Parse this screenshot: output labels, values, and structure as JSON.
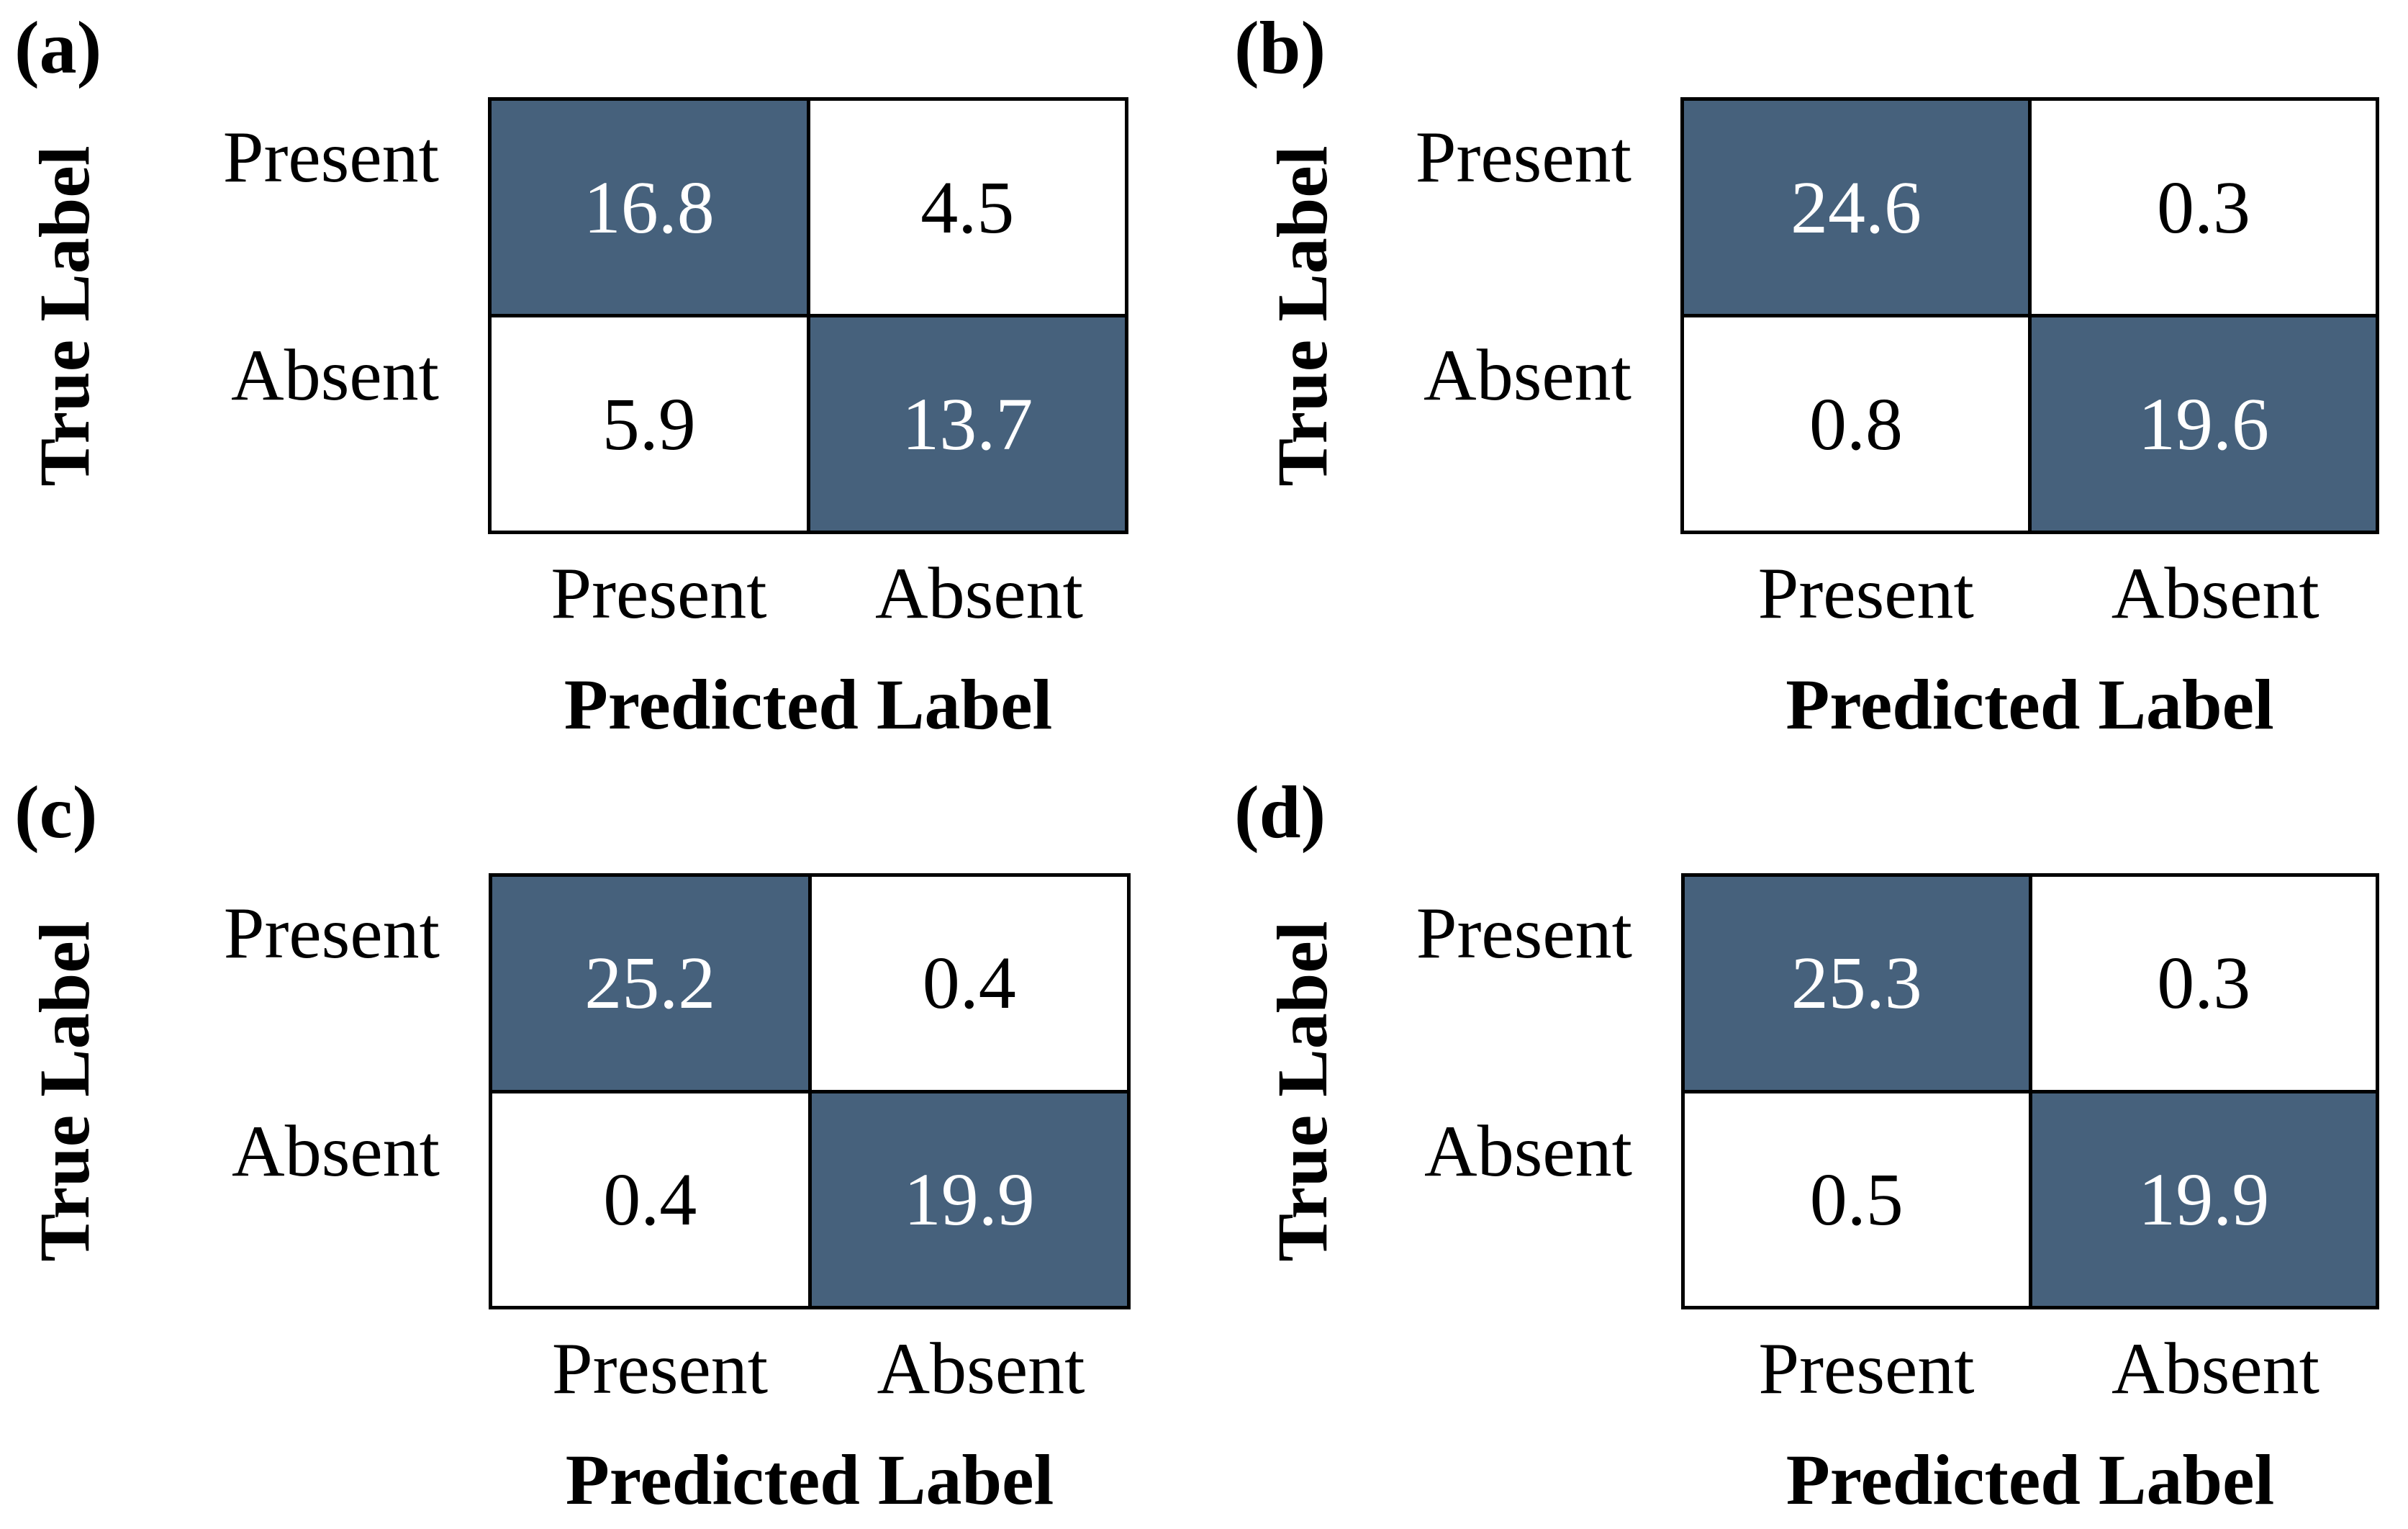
{
  "axis": {
    "true_label": "True Label",
    "predicted_label": "Predicted Label"
  },
  "ticks": {
    "row": [
      "Present",
      "Absent"
    ],
    "col": [
      "Present",
      "Absent"
    ]
  },
  "panels": [
    {
      "letter": "(a)",
      "cells": [
        "16.8",
        "4.5",
        "5.9",
        "13.7"
      ]
    },
    {
      "letter": "(b)",
      "cells": [
        "24.6",
        "0.3",
        "0.8",
        "19.6"
      ]
    },
    {
      "letter": "(c)",
      "cells": [
        "25.2",
        "0.4",
        "0.4",
        "19.9"
      ]
    },
    {
      "letter": "(d)",
      "cells": [
        "25.3",
        "0.3",
        "0.5",
        "19.9"
      ]
    }
  ],
  "colors": {
    "diagonal_cell": "#46617C",
    "off_diagonal_cell": "#FFFFFF",
    "grid_line": "#000000",
    "number_on_diagonal": "#FFFFFF",
    "number_off_diagonal": "#000000",
    "background": "#FFFFFF"
  },
  "chart_data": [
    {
      "type": "heatmap",
      "title": "(a)",
      "x_categories": [
        "Present",
        "Absent"
      ],
      "y_categories": [
        "Present",
        "Absent"
      ],
      "xlabel": "Predicted Label",
      "ylabel": "True Label",
      "values": [
        [
          16.8,
          4.5
        ],
        [
          5.9,
          13.7
        ]
      ],
      "highlighted_cells": "diagonal",
      "legend": "none",
      "grid": "black cell borders"
    },
    {
      "type": "heatmap",
      "title": "(b)",
      "x_categories": [
        "Present",
        "Absent"
      ],
      "y_categories": [
        "Present",
        "Absent"
      ],
      "xlabel": "Predicted Label",
      "ylabel": "True Label",
      "values": [
        [
          24.6,
          0.3
        ],
        [
          0.8,
          19.6
        ]
      ],
      "highlighted_cells": "diagonal",
      "legend": "none",
      "grid": "black cell borders"
    },
    {
      "type": "heatmap",
      "title": "(c)",
      "x_categories": [
        "Present",
        "Absent"
      ],
      "y_categories": [
        "Present",
        "Absent"
      ],
      "xlabel": "Predicted Label",
      "ylabel": "True Label",
      "values": [
        [
          25.2,
          0.4
        ],
        [
          0.4,
          19.9
        ]
      ],
      "highlighted_cells": "diagonal",
      "legend": "none",
      "grid": "black cell borders"
    },
    {
      "type": "heatmap",
      "title": "(d)",
      "x_categories": [
        "Present",
        "Absent"
      ],
      "y_categories": [
        "Present",
        "Absent"
      ],
      "xlabel": "Predicted Label",
      "ylabel": "True Label",
      "values": [
        [
          25.3,
          0.3
        ],
        [
          0.5,
          19.9
        ]
      ],
      "highlighted_cells": "diagonal",
      "legend": "none",
      "grid": "black cell borders"
    }
  ]
}
